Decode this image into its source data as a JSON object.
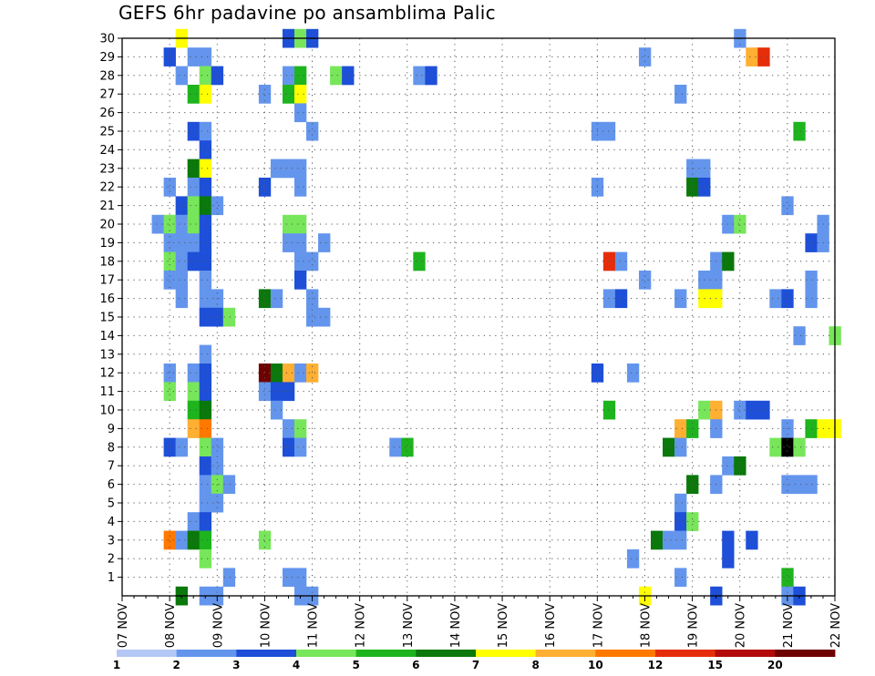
{
  "chart_data": {
    "type": "heatmap",
    "title": "GEFS 6hr padavine po ansamblima Palic",
    "xlabel": "",
    "ylabel": "",
    "x_tick_labels": [
      "07 NOV",
      "08 NOV",
      "09 NOV",
      "10 NOV",
      "11 NOV",
      "12 NOV",
      "13 NOV",
      "14 NOV",
      "15 NOV",
      "16 NOV",
      "17 NOV",
      "18 NOV",
      "19 NOV",
      "20 NOV",
      "21 NOV",
      "22 NOV"
    ],
    "y_tick_labels": [
      "1",
      "2",
      "3",
      "4",
      "5",
      "6",
      "7",
      "8",
      "9",
      "10",
      "11",
      "12",
      "13",
      "14",
      "15",
      "16",
      "17",
      "18",
      "19",
      "20",
      "21",
      "22",
      "23",
      "24",
      "25",
      "26",
      "27",
      "28",
      "29",
      "30"
    ],
    "x_units": "6-hour steps (4 per day)",
    "x_range": [
      0,
      60
    ],
    "y_range": [
      0,
      30
    ],
    "grid": true,
    "color_scale": {
      "colors": [
        "#b4c8f5",
        "#6495ed",
        "#1e4fd8",
        "#78e65a",
        "#1eb41e",
        "#0a780a",
        "#ffff00",
        "#ffaf32",
        "#ff7800",
        "#e62d0a",
        "#b40a0a",
        "#6e0000"
      ],
      "labels": [
        "1",
        "2",
        "3",
        "4",
        "5",
        "6",
        "7",
        "8",
        "10",
        "12",
        "15",
        "20"
      ]
    },
    "cells": [
      [
        5,
        30,
        6
      ],
      [
        14,
        30,
        2
      ],
      [
        15,
        30,
        3
      ],
      [
        16,
        30,
        2
      ],
      [
        52,
        30,
        1
      ],
      [
        4,
        29,
        2
      ],
      [
        6,
        29,
        1
      ],
      [
        7,
        29,
        1
      ],
      [
        44,
        29,
        1
      ],
      [
        53,
        29,
        7
      ],
      [
        54,
        29,
        9
      ],
      [
        5,
        28,
        1
      ],
      [
        7,
        28,
        3
      ],
      [
        8,
        28,
        2
      ],
      [
        14,
        28,
        1
      ],
      [
        15,
        28,
        4
      ],
      [
        18,
        28,
        3
      ],
      [
        19,
        28,
        2
      ],
      [
        25,
        28,
        1
      ],
      [
        26,
        28,
        2
      ],
      [
        6,
        27,
        4
      ],
      [
        7,
        27,
        6
      ],
      [
        12,
        27,
        1
      ],
      [
        14,
        27,
        4
      ],
      [
        15,
        27,
        6
      ],
      [
        47,
        27,
        1
      ],
      [
        15,
        26,
        1
      ],
      [
        6,
        25,
        2
      ],
      [
        7,
        25,
        1
      ],
      [
        16,
        25,
        1
      ],
      [
        40,
        25,
        1
      ],
      [
        41,
        25,
        1
      ],
      [
        57,
        25,
        4
      ],
      [
        7,
        24,
        2
      ],
      [
        6,
        23,
        5
      ],
      [
        7,
        23,
        6
      ],
      [
        13,
        23,
        1
      ],
      [
        14,
        23,
        1
      ],
      [
        15,
        23,
        1
      ],
      [
        48,
        23,
        1
      ],
      [
        49,
        23,
        1
      ],
      [
        4,
        22,
        1
      ],
      [
        6,
        22,
        1
      ],
      [
        7,
        22,
        2
      ],
      [
        12,
        22,
        2
      ],
      [
        15,
        22,
        1
      ],
      [
        40,
        22,
        1
      ],
      [
        48,
        22,
        5
      ],
      [
        49,
        22,
        2
      ],
      [
        5,
        21,
        2
      ],
      [
        6,
        21,
        3
      ],
      [
        7,
        21,
        5
      ],
      [
        8,
        21,
        1
      ],
      [
        56,
        21,
        1
      ],
      [
        3,
        20,
        1
      ],
      [
        4,
        20,
        3
      ],
      [
        5,
        20,
        1
      ],
      [
        6,
        20,
        3
      ],
      [
        7,
        20,
        2
      ],
      [
        14,
        20,
        3
      ],
      [
        15,
        20,
        3
      ],
      [
        51,
        20,
        1
      ],
      [
        52,
        20,
        3
      ],
      [
        59,
        20,
        1
      ],
      [
        4,
        19,
        1
      ],
      [
        5,
        19,
        1
      ],
      [
        6,
        19,
        1
      ],
      [
        7,
        19,
        2
      ],
      [
        14,
        19,
        1
      ],
      [
        15,
        19,
        1
      ],
      [
        17,
        19,
        1
      ],
      [
        58,
        19,
        2
      ],
      [
        59,
        19,
        1
      ],
      [
        4,
        18,
        3
      ],
      [
        5,
        18,
        1
      ],
      [
        6,
        18,
        2
      ],
      [
        7,
        18,
        2
      ],
      [
        15,
        18,
        1
      ],
      [
        16,
        18,
        1
      ],
      [
        25,
        18,
        4
      ],
      [
        41,
        18,
        9
      ],
      [
        42,
        18,
        1
      ],
      [
        50,
        18,
        1
      ],
      [
        51,
        18,
        5
      ],
      [
        4,
        17,
        1
      ],
      [
        5,
        17,
        1
      ],
      [
        7,
        17,
        1
      ],
      [
        15,
        17,
        2
      ],
      [
        44,
        17,
        1
      ],
      [
        49,
        17,
        1
      ],
      [
        50,
        17,
        1
      ],
      [
        58,
        17,
        1
      ],
      [
        5,
        16,
        1
      ],
      [
        7,
        16,
        1
      ],
      [
        8,
        16,
        1
      ],
      [
        12,
        16,
        5
      ],
      [
        13,
        16,
        1
      ],
      [
        16,
        16,
        1
      ],
      [
        41,
        16,
        1
      ],
      [
        42,
        16,
        2
      ],
      [
        47,
        16,
        1
      ],
      [
        49,
        16,
        6
      ],
      [
        50,
        16,
        6
      ],
      [
        55,
        16,
        1
      ],
      [
        56,
        16,
        2
      ],
      [
        58,
        16,
        1
      ],
      [
        7,
        15,
        2
      ],
      [
        8,
        15,
        2
      ],
      [
        9,
        15,
        3
      ],
      [
        16,
        15,
        1
      ],
      [
        17,
        15,
        1
      ],
      [
        57,
        14,
        1
      ],
      [
        60,
        14,
        3
      ],
      [
        7,
        13,
        1
      ],
      [
        4,
        12,
        1
      ],
      [
        6,
        12,
        1
      ],
      [
        7,
        12,
        2
      ],
      [
        12,
        12,
        11
      ],
      [
        13,
        12,
        5
      ],
      [
        14,
        12,
        7
      ],
      [
        15,
        12,
        1
      ],
      [
        16,
        12,
        7
      ],
      [
        40,
        12,
        2
      ],
      [
        43,
        12,
        1
      ],
      [
        4,
        11,
        3
      ],
      [
        6,
        11,
        3
      ],
      [
        7,
        11,
        2
      ],
      [
        12,
        11,
        1
      ],
      [
        13,
        11,
        2
      ],
      [
        14,
        11,
        2
      ],
      [
        6,
        10,
        4
      ],
      [
        7,
        10,
        5
      ],
      [
        13,
        10,
        1
      ],
      [
        41,
        10,
        4
      ],
      [
        49,
        10,
        3
      ],
      [
        50,
        10,
        7
      ],
      [
        52,
        10,
        1
      ],
      [
        53,
        10,
        2
      ],
      [
        54,
        10,
        2
      ],
      [
        6,
        9,
        7
      ],
      [
        7,
        9,
        8
      ],
      [
        14,
        9,
        1
      ],
      [
        15,
        9,
        3
      ],
      [
        47,
        9,
        7
      ],
      [
        48,
        9,
        4
      ],
      [
        50,
        9,
        1
      ],
      [
        56,
        9,
        1
      ],
      [
        58,
        9,
        4
      ],
      [
        59,
        9,
        6
      ],
      [
        60,
        9,
        6
      ],
      [
        4,
        8,
        2
      ],
      [
        5,
        8,
        1
      ],
      [
        7,
        8,
        3
      ],
      [
        8,
        8,
        1
      ],
      [
        14,
        8,
        2
      ],
      [
        15,
        8,
        1
      ],
      [
        23,
        8,
        1
      ],
      [
        24,
        8,
        4
      ],
      [
        46,
        8,
        5
      ],
      [
        47,
        8,
        1
      ],
      [
        55,
        8,
        3
      ],
      [
        56,
        8,
        12
      ],
      [
        57,
        8,
        3
      ],
      [
        7,
        7,
        2
      ],
      [
        8,
        7,
        1
      ],
      [
        51,
        7,
        1
      ],
      [
        52,
        7,
        5
      ],
      [
        7,
        6,
        1
      ],
      [
        8,
        6,
        3
      ],
      [
        9,
        6,
        1
      ],
      [
        48,
        6,
        5
      ],
      [
        50,
        6,
        1
      ],
      [
        56,
        6,
        1
      ],
      [
        57,
        6,
        1
      ],
      [
        58,
        6,
        1
      ],
      [
        7,
        5,
        1
      ],
      [
        8,
        5,
        1
      ],
      [
        47,
        5,
        1
      ],
      [
        6,
        4,
        1
      ],
      [
        7,
        4,
        2
      ],
      [
        47,
        4,
        2
      ],
      [
        48,
        4,
        3
      ],
      [
        4,
        3,
        8
      ],
      [
        5,
        3,
        1
      ],
      [
        6,
        3,
        5
      ],
      [
        7,
        3,
        4
      ],
      [
        12,
        3,
        3
      ],
      [
        45,
        3,
        5
      ],
      [
        46,
        3,
        1
      ],
      [
        47,
        3,
        1
      ],
      [
        51,
        3,
        2
      ],
      [
        53,
        3,
        2
      ],
      [
        7,
        2,
        3
      ],
      [
        43,
        2,
        1
      ],
      [
        51,
        2,
        2
      ],
      [
        9,
        1,
        1
      ],
      [
        14,
        1,
        1
      ],
      [
        15,
        1,
        1
      ],
      [
        47,
        1,
        1
      ],
      [
        56,
        1,
        4
      ],
      [
        5,
        0,
        5
      ],
      [
        7,
        0,
        1
      ],
      [
        8,
        0,
        1
      ],
      [
        15,
        0,
        1
      ],
      [
        16,
        0,
        1
      ],
      [
        44,
        0,
        6
      ],
      [
        50,
        0,
        2
      ],
      [
        56,
        0,
        1
      ],
      [
        57,
        0,
        2
      ]
    ]
  }
}
